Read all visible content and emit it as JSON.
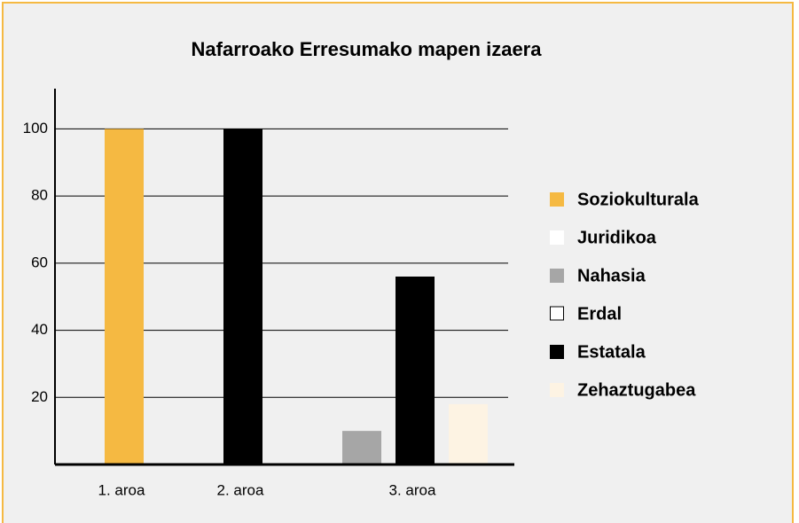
{
  "chart_data": {
    "type": "bar",
    "title": "Nafarroako Erresumako mapen izaera",
    "categories": [
      "1. aroa",
      "2. aroa",
      "3. aroa"
    ],
    "series": [
      {
        "name": "Soziokulturala",
        "color": "#f5b942",
        "values": [
          100,
          null,
          null
        ]
      },
      {
        "name": "Juridikoa",
        "color": "#ffffff",
        "values": [
          null,
          null,
          null
        ]
      },
      {
        "name": "Nahasia",
        "color": "#a6a6a6",
        "values": [
          null,
          null,
          10
        ]
      },
      {
        "name": "Erdal",
        "color": "#ffffff",
        "values": [
          null,
          null,
          null
        ]
      },
      {
        "name": "Estatala",
        "color": "#000000",
        "values": [
          null,
          100,
          56
        ]
      },
      {
        "name": "Zehaztugabea",
        "color": "#fdf3e3",
        "values": [
          null,
          null,
          18
        ]
      }
    ],
    "ylim": [
      0,
      112
    ],
    "yticks": [
      20,
      40,
      60,
      80,
      100
    ],
    "grid": true,
    "legend": "right"
  }
}
